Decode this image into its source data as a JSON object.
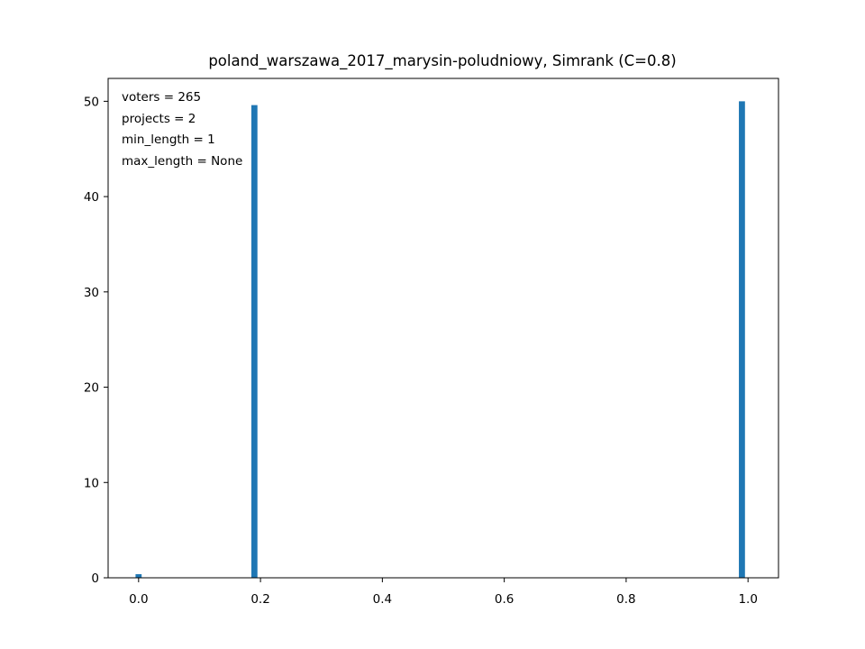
{
  "chart_data": {
    "type": "bar",
    "title": "poland_warszawa_2017_marysin-poludniowy, Simrank (C=0.8)",
    "xlabel": "",
    "ylabel": "",
    "xlim": [
      -0.05,
      1.05
    ],
    "ylim": [
      0,
      52.4
    ],
    "bar_width": 0.01,
    "color": "#1f77b4",
    "bars": [
      {
        "x": 0.0,
        "value": 0.38
      },
      {
        "x": 0.19,
        "value": 49.6
      },
      {
        "x": 0.99,
        "value": 50.0
      }
    ],
    "xticks": [
      {
        "value": 0.0,
        "label": "0.0"
      },
      {
        "value": 0.2,
        "label": "0.2"
      },
      {
        "value": 0.4,
        "label": "0.4"
      },
      {
        "value": 0.6,
        "label": "0.6"
      },
      {
        "value": 0.8,
        "label": "0.8"
      },
      {
        "value": 1.0,
        "label": "1.0"
      }
    ],
    "yticks": [
      {
        "value": 0,
        "label": "0"
      },
      {
        "value": 10,
        "label": "10"
      },
      {
        "value": 20,
        "label": "20"
      },
      {
        "value": 30,
        "label": "30"
      },
      {
        "value": 40,
        "label": "40"
      },
      {
        "value": 50,
        "label": "50"
      }
    ],
    "grid": false,
    "annotations": [
      "voters = 265",
      "projects = 2",
      "min_length = 1",
      "max_length = None"
    ],
    "annotation_position": "top-left"
  }
}
